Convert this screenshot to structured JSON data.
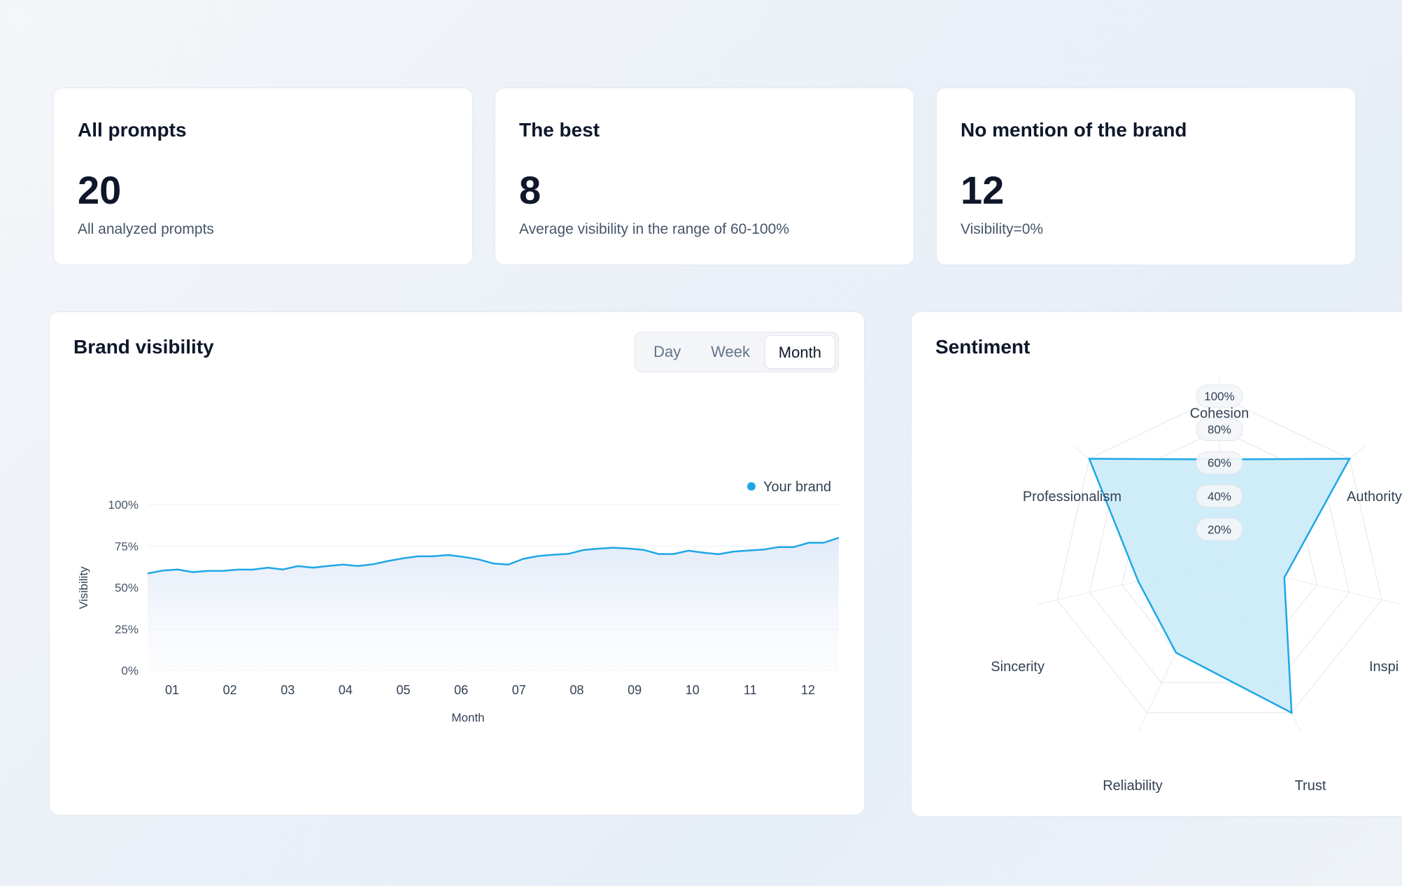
{
  "stats": [
    {
      "title": "All prompts",
      "value": "20",
      "subtitle": "All analyzed prompts"
    },
    {
      "title": "The best",
      "value": "8",
      "subtitle": "Average visibility in the range of 60-100%"
    },
    {
      "title": "No mention of the brand",
      "value": "12",
      "subtitle": "Visibility=0%"
    }
  ],
  "visibility_panel": {
    "title": "Brand visibility",
    "tabs": [
      "Day",
      "Week",
      "Month"
    ],
    "active_tab": "Month"
  },
  "sentiment_panel": {
    "title": "Sentiment"
  },
  "colors": {
    "accent": "#1ea7e6",
    "fill": "#c7e9f8"
  },
  "chart_data": [
    {
      "type": "area",
      "title": "",
      "xlabel": "Month",
      "ylabel": "Visibility",
      "ylim": [
        0,
        100
      ],
      "yticks": [
        "100%",
        "75%",
        "50%",
        "25%",
        "0%"
      ],
      "xticks": [
        "01",
        "02",
        "03",
        "04",
        "05",
        "06",
        "07",
        "08",
        "09",
        "10",
        "11",
        "12"
      ],
      "legend": "top-right",
      "grid": true,
      "series": [
        {
          "name": "Your brand",
          "values": [
            58.5,
            60.2,
            60.9,
            59.3,
            60.0,
            60.0,
            60.8,
            60.8,
            62.0,
            60.9,
            62.9,
            62.0,
            63.0,
            63.8,
            63.0,
            64.0,
            66.0,
            67.6,
            68.8,
            68.8,
            69.6,
            68.5,
            67.0,
            64.5,
            63.8,
            67.3,
            69.0,
            69.8,
            70.3,
            72.6,
            73.4,
            74.0,
            73.5,
            72.7,
            70.2,
            70.2,
            72.2,
            71.0,
            70.1,
            71.7,
            72.3,
            72.9,
            74.4,
            74.4,
            77.0,
            77.0,
            80.0
          ]
        }
      ]
    },
    {
      "type": "radar",
      "title": "",
      "axes": [
        "Cohesion",
        "Authority",
        "Inspi",
        "Trust",
        "Reliability",
        "Sincerity",
        "Professionalism"
      ],
      "rlim": [
        0,
        100
      ],
      "rticks": [
        "20%",
        "40%",
        "60%",
        "80%",
        "100%"
      ],
      "series": [
        {
          "values": [
            62,
            100,
            40,
            100,
            60,
            50,
            100
          ]
        }
      ]
    }
  ]
}
